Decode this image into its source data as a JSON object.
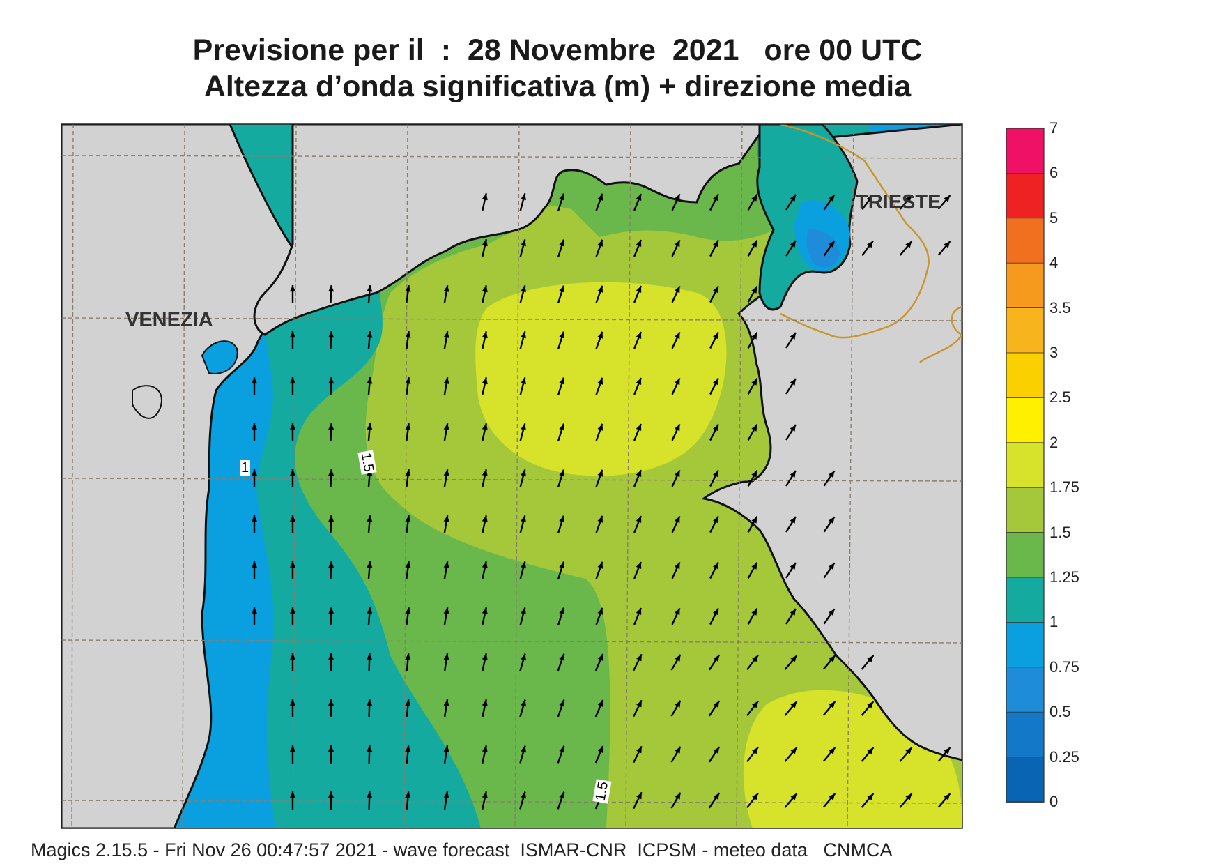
{
  "title": {
    "line1": "Previsione per il  :  28 Novembre  2021   ore 00 UTC",
    "line2": "Altezza d’onda significativa (m) + direzione media"
  },
  "places": {
    "venezia": "VENEZIA",
    "trieste": "TRIESTE"
  },
  "contour_labels": [
    "1",
    "1.5",
    "1.5"
  ],
  "legend": {
    "labels": [
      "7",
      "6",
      "5",
      "4",
      "3.5",
      "3",
      "2.5",
      "2",
      "1.75",
      "1.5",
      "1.25",
      "1",
      "0.75",
      "0.5",
      "0.25",
      "0"
    ],
    "colors": [
      "#ee1166",
      "#ee2222",
      "#f07020",
      "#f59a1c",
      "#f8b41c",
      "#fbd000",
      "#fff000",
      "#d7e22a",
      "#a5c83a",
      "#6ab84c",
      "#14aaa0",
      "#0aa0e0",
      "#1e8cd8",
      "#1478c8",
      "#0a64b4"
    ]
  },
  "colors": {
    "land": "#d2d2d2",
    "coast": "#111111",
    "border": "#c8962e",
    "grid": "#8a7d6a",
    "arrow": "#000000"
  },
  "footer": "Magics 2.15.5 - Fri Nov 26 00:47:57 2021 - wave forecast  ISMAR-CNR  ICPSM - meteo data   CNMCA"
}
